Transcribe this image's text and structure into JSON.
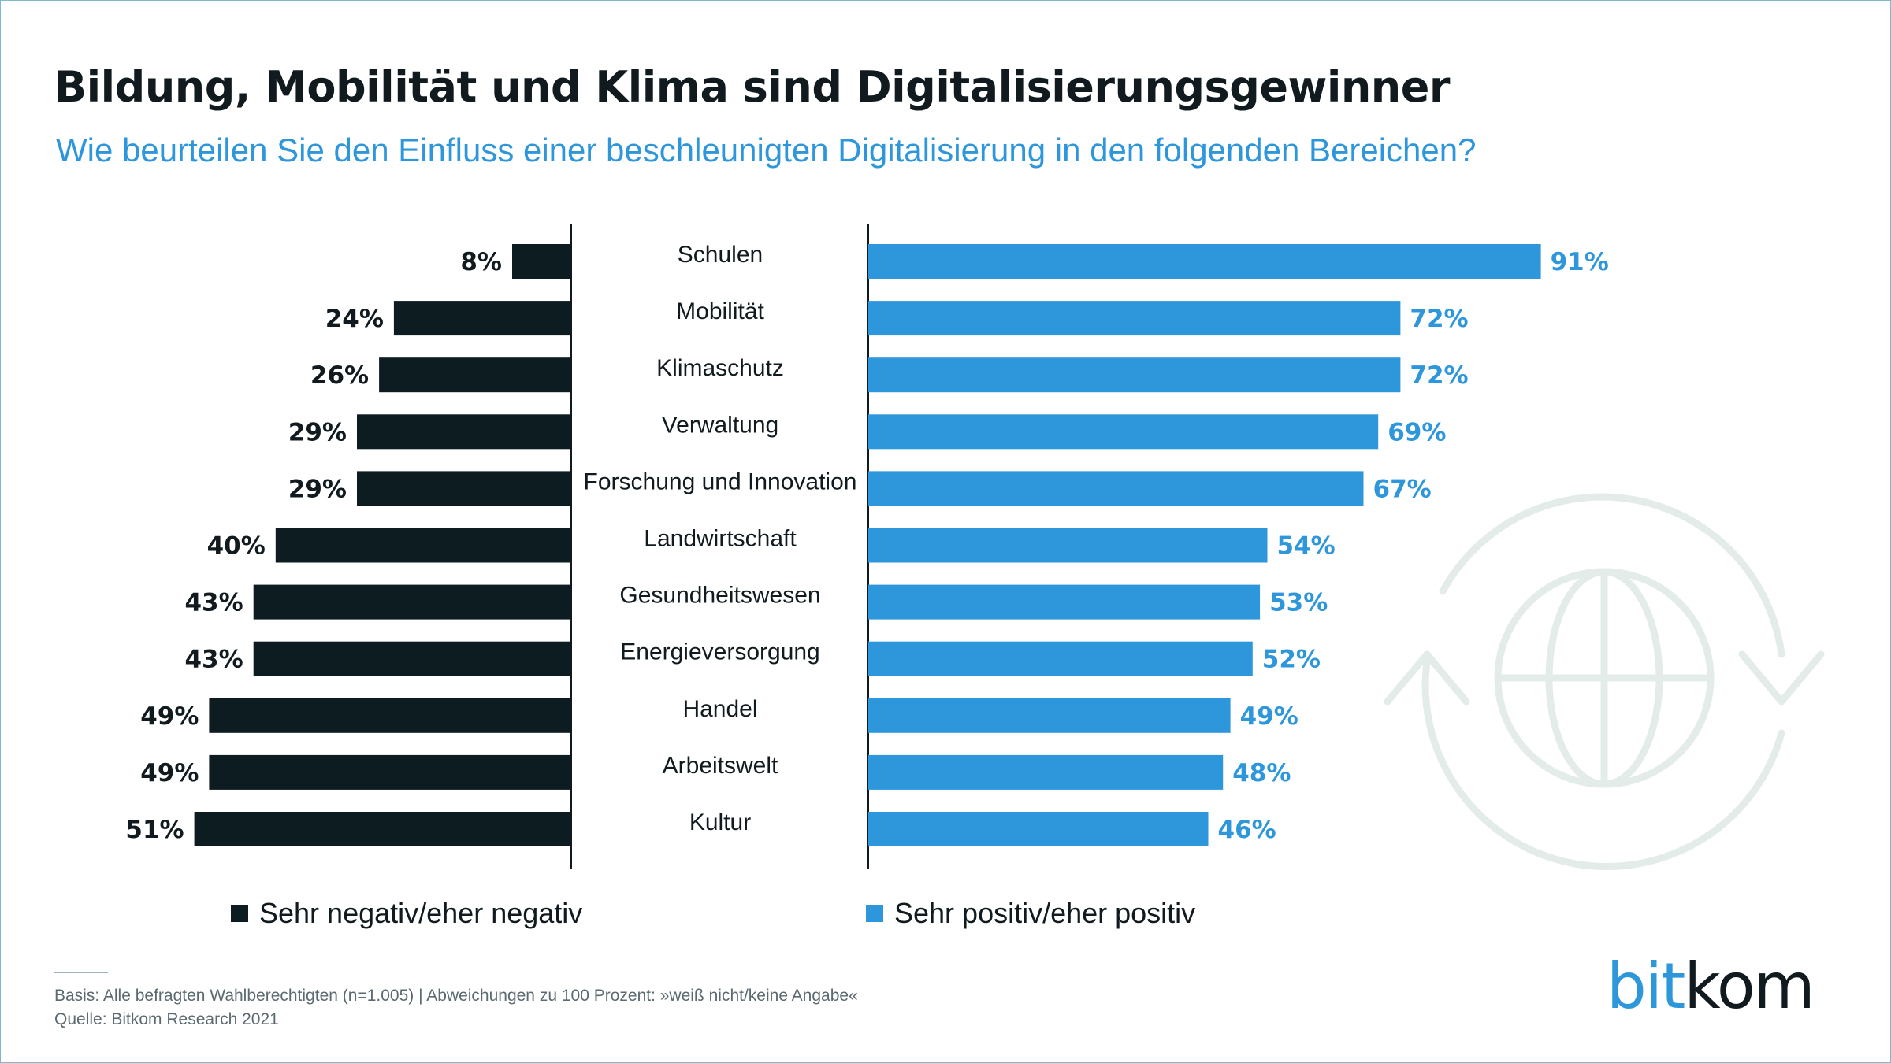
{
  "title": "Bildung, Mobilität und Klima sind Digitalisierungsgewinner",
  "subtitle": "Wie beurteilen Sie den Einfluss einer beschleunigten Digitalisierung in den folgenden Bereichen?",
  "colors": {
    "negative": "#0d1c20",
    "positive": "#2e97dc",
    "globe": "#e4ecea"
  },
  "legend": {
    "negative": "Sehr negativ/eher negativ",
    "positive": "Sehr positiv/eher positiv"
  },
  "footnote": {
    "basis": "Basis: Alle befragten Wahlberechtigten  (n=1.005) | Abweichungen zu 100 Prozent: »weiß nicht/keine Angabe«",
    "source": "Quelle: Bitkom Research 2021"
  },
  "logo": {
    "part1": "bit",
    "part2": "kom"
  },
  "decoration": {
    "icon": "globe-refresh-icon"
  },
  "chart_data": {
    "type": "bar",
    "orientation": "horizontal",
    "layout": "diverging",
    "title": "Bildung, Mobilität und Klima sind Digitalisierungsgewinner",
    "subtitle": "Wie beurteilen Sie den Einfluss einer beschleunigten Digitalisierung in den folgenden Bereichen?",
    "unit": "%",
    "categories": [
      "Schulen",
      "Mobilität",
      "Klimaschutz",
      "Verwaltung",
      "Forschung und Innovation",
      "Landwirtschaft",
      "Gesundheitswesen",
      "Energieversorgung",
      "Handel",
      "Arbeitswelt",
      "Kultur"
    ],
    "series": [
      {
        "name": "Sehr negativ/eher negativ",
        "values": [
          8,
          24,
          26,
          29,
          29,
          40,
          43,
          43,
          49,
          49,
          51
        ]
      },
      {
        "name": "Sehr positiv/eher positiv",
        "values": [
          91,
          72,
          72,
          69,
          67,
          54,
          53,
          52,
          49,
          48,
          46
        ]
      }
    ],
    "value_labels": {
      "negative": [
        "8%",
        "24%",
        "26%",
        "29%",
        "29%",
        "40%",
        "43%",
        "43%",
        "49%",
        "49%",
        "51%"
      ],
      "positive": [
        "91%",
        "72%",
        "72%",
        "69%",
        "67%",
        "54%",
        "53%",
        "52%",
        "49%",
        "48%",
        "46%"
      ]
    },
    "legend_position": "bottom",
    "grid": false
  }
}
